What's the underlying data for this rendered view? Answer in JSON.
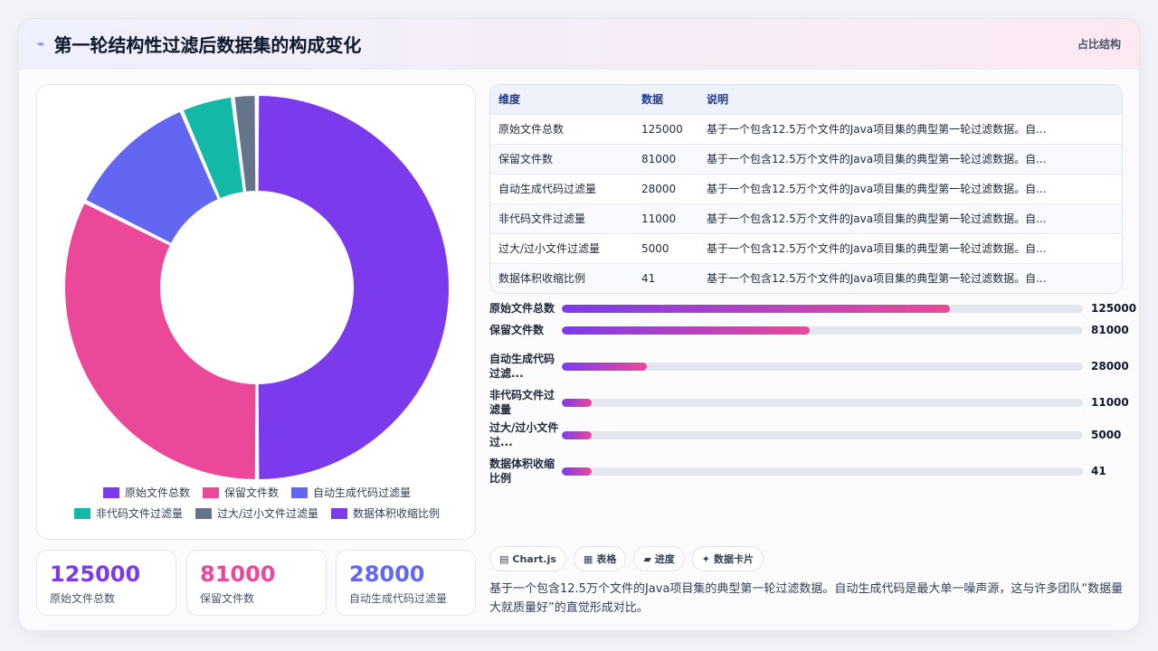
{
  "header": {
    "title": "第一轮结构性过滤后数据集的构成变化",
    "tag": "占比结构"
  },
  "chart_data": {
    "type": "pie",
    "categories": [
      "原始文件总数",
      "保留文件数",
      "自动生成代码过滤量",
      "非代码文件过滤量",
      "过大/过小文件过滤量",
      "数据体积收缩比例"
    ],
    "values": [
      125000,
      81000,
      28000,
      11000,
      5000,
      41
    ],
    "colors": [
      "#7c3aed",
      "#ec4899",
      "#6366f1",
      "#14b8a6",
      "#64748b",
      "#7c3aed"
    ]
  },
  "table": {
    "headers": [
      "维度",
      "数据",
      "说明"
    ],
    "rows": [
      [
        "原始文件总数",
        "125000",
        "基于一个包含12.5万个文件的Java项目集的典型第一轮过滤数据。自..."
      ],
      [
        "保留文件数",
        "81000",
        "基于一个包含12.5万个文件的Java项目集的典型第一轮过滤数据。自..."
      ],
      [
        "自动生成代码过滤量",
        "28000",
        "基于一个包含12.5万个文件的Java项目集的典型第一轮过滤数据。自..."
      ],
      [
        "非代码文件过滤量",
        "11000",
        "基于一个包含12.5万个文件的Java项目集的典型第一轮过滤数据。自..."
      ],
      [
        "过大/过小文件过滤量",
        "5000",
        "基于一个包含12.5万个文件的Java项目集的典型第一轮过滤数据。自..."
      ],
      [
        "数据体积收缩比例",
        "41",
        "基于一个包含12.5万个文件的Java项目集的典型第一轮过滤数据。自..."
      ]
    ]
  },
  "bars": [
    {
      "label": "原始文件总数",
      "value": "125000",
      "fill": 0.745
    },
    {
      "label": "保留文件数",
      "value": "81000",
      "fill": 0.476
    },
    {
      "label": "自动生成代码过滤...",
      "value": "28000",
      "fill": 0.163
    },
    {
      "label": "非代码文件过滤量",
      "value": "11000",
      "fill": 0.058
    },
    {
      "label": "过大/过小文件过...",
      "value": "5000",
      "fill": 0.058
    },
    {
      "label": "数据体积收缩比例",
      "value": "41",
      "fill": 0.058
    }
  ],
  "stats": [
    {
      "value": "125000",
      "label": "原始文件总数",
      "color": "#7c3aed"
    },
    {
      "value": "81000",
      "label": "保留文件数",
      "color": "#ec4899"
    },
    {
      "value": "28000",
      "label": "自动生成代码过滤量",
      "color": "#6366f1"
    }
  ],
  "chips": [
    {
      "icon": "▤",
      "label": "Chart.js"
    },
    {
      "icon": "▦",
      "label": "表格"
    },
    {
      "icon": "▰",
      "label": "进度"
    },
    {
      "icon": "✦",
      "label": "数据卡片"
    }
  ],
  "description": "基于一个包含12.5万个文件的Java项目集的典型第一轮过滤数据。自动生成代码是最大单一噪声源，这与许多团队“数据量大就质量好”的直觉形成对比。"
}
